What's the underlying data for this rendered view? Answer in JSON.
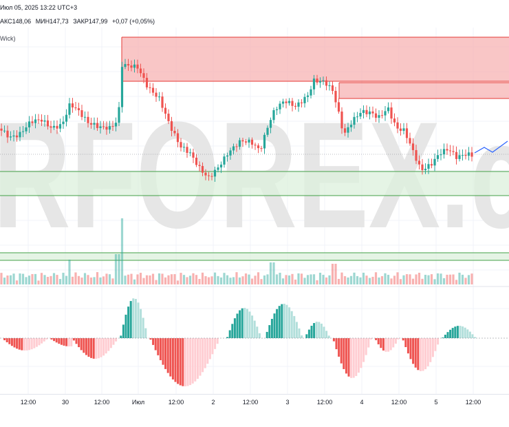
{
  "header": {
    "date_time": "Июл 05, 2025 13:22 UTC+3",
    "ohlc": {
      "high": "АКС148,06",
      "low": "МИН147,73",
      "close": "ЗАКР147,99",
      "change": "+0,07 (+0,05%)"
    },
    "indicator_label": "Wick)"
  },
  "watermark": {
    "text": "RFOREX.c"
  },
  "colors": {
    "up_candle": "#26a69a",
    "down_candle": "#ef5350",
    "resistance_zone_fill": "#f7b3b3",
    "resistance_zone_border": "#e53935",
    "support_zone_fill": "#dcf0dc",
    "support_zone_border": "#43a047",
    "projection_line": "#2962ff",
    "hist_strong_up": "#26a69a",
    "hist_weak_up": "#b2dfdb",
    "hist_strong_down": "#ef5350",
    "hist_weak_down": "#ffcdd2",
    "watermark": "#e6e6e6"
  },
  "time_axis": {
    "ticks": [
      "12:00",
      "30",
      "12:00",
      "Июл",
      "12:00",
      "2",
      "12:00",
      "3",
      "12:00",
      "4",
      "12:00",
      "5",
      "12:00"
    ]
  },
  "chart_data": {
    "type": "candlestick",
    "symbol_interval": "hourly",
    "current_bar": {
      "high": 148.06,
      "low": 147.73,
      "close": 147.99,
      "change": 0.07,
      "change_pct": 0.05
    },
    "indicators": [
      "volume",
      "histogram oscillator"
    ],
    "zones": [
      {
        "kind": "resistance",
        "start": "Июл 01 ~00:00",
        "end": "right edge"
      },
      {
        "kind": "resistance",
        "start": "Июл 03 ~12:00",
        "end": "right edge"
      },
      {
        "kind": "support",
        "start": "left edge",
        "end": "right edge"
      },
      {
        "kind": "support",
        "start": "left edge",
        "end": "right edge"
      }
    ]
  }
}
